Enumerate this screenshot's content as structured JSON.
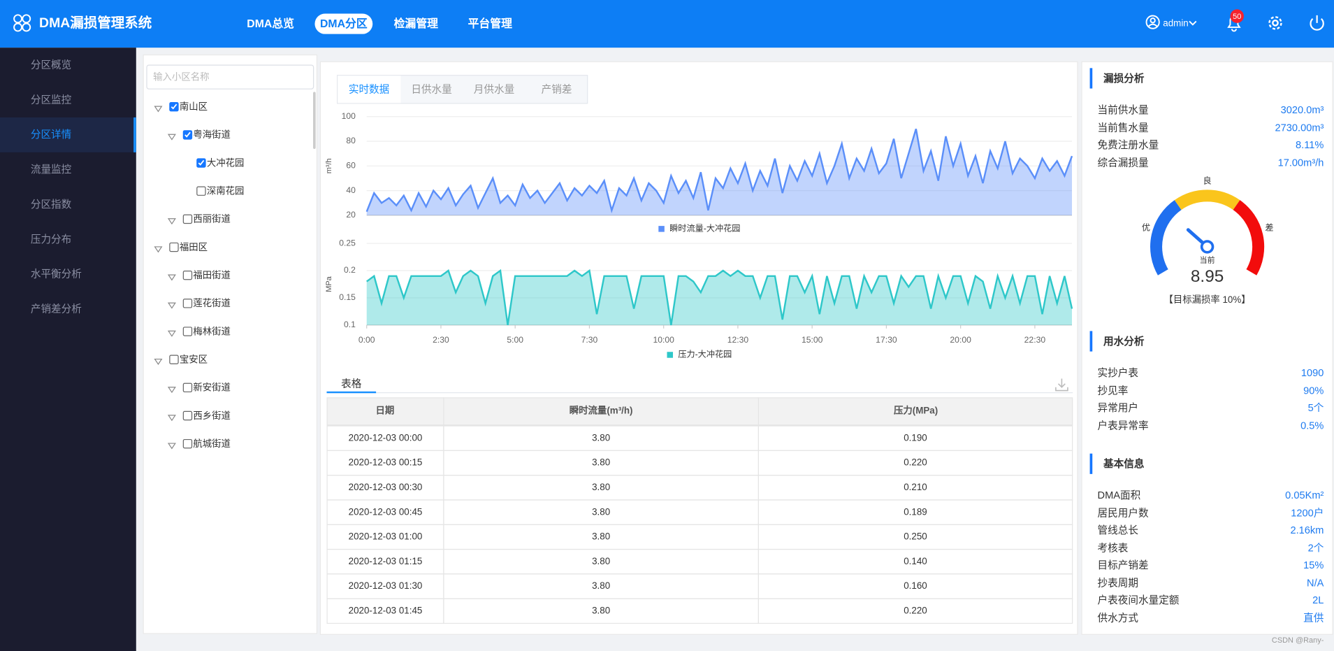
{
  "header": {
    "title": "DMA漏损管理系统",
    "nav": [
      "DMA总览",
      "DMA分区",
      "检漏管理",
      "平台管理"
    ],
    "active_nav": 1,
    "user": "admin",
    "notifications": 50
  },
  "sidebar": {
    "items": [
      "分区概览",
      "分区监控",
      "分区详情",
      "流量监控",
      "分区指数",
      "压力分布",
      "水平衡分析",
      "产销差分析"
    ],
    "active": 2
  },
  "tree": {
    "placeholder": "输入小区名称",
    "nodes": [
      {
        "label": "南山区",
        "level": 0,
        "checked": true
      },
      {
        "label": "粤海街道",
        "level": 1,
        "checked": true
      },
      {
        "label": "大冲花园",
        "level": 2,
        "checked": true
      },
      {
        "label": "深南花园",
        "level": 2,
        "checked": false
      },
      {
        "label": "西丽街道",
        "level": 1,
        "checked": false
      },
      {
        "label": "福田区",
        "level": 0,
        "checked": false
      },
      {
        "label": "福田街道",
        "level": 1,
        "checked": false
      },
      {
        "label": "莲花街道",
        "level": 1,
        "checked": false
      },
      {
        "label": "梅林街道",
        "level": 1,
        "checked": false
      },
      {
        "label": "宝安区",
        "level": 0,
        "checked": false
      },
      {
        "label": "新安街道",
        "level": 1,
        "checked": false
      },
      {
        "label": "西乡街道",
        "level": 1,
        "checked": false
      },
      {
        "label": "航城街道",
        "level": 1,
        "checked": false
      }
    ]
  },
  "tabs": {
    "items": [
      "实时数据",
      "日供水量",
      "月供水量",
      "产销差"
    ],
    "active": 0
  },
  "chart_data": [
    {
      "type": "area",
      "y_label": "m³/h",
      "ylim": [
        20,
        100
      ],
      "yticks": [
        20,
        40,
        60,
        80,
        100
      ],
      "grid": true,
      "series": [
        {
          "name": "瞬时流量-大冲花园",
          "color": "#5b8ff9",
          "values": [
            23,
            38,
            30,
            34,
            28,
            36,
            24,
            38,
            27,
            40,
            33,
            42,
            28,
            37,
            44,
            26,
            38,
            50,
            30,
            36,
            28,
            45,
            34,
            40,
            30,
            38,
            46,
            32,
            42,
            36,
            44,
            38,
            48,
            24,
            42,
            36,
            50,
            32,
            46,
            40,
            30,
            52,
            38,
            48,
            34,
            55,
            24,
            50,
            42,
            58,
            46,
            62,
            40,
            56,
            44,
            66,
            38,
            60,
            48,
            64,
            52,
            70,
            46,
            60,
            78,
            50,
            66,
            56,
            74,
            54,
            62,
            82,
            50,
            70,
            90,
            56,
            72,
            48,
            84,
            60,
            78,
            52,
            68,
            46,
            72,
            58,
            80,
            54,
            66,
            60,
            50,
            66,
            56,
            64,
            52,
            68
          ]
        }
      ]
    },
    {
      "type": "area",
      "y_label": "MPa",
      "ylim": [
        0.1,
        0.25
      ],
      "yticks": [
        0.1,
        0.15,
        0.2,
        0.25
      ],
      "grid": true,
      "categories": [
        "0:00",
        null,
        null,
        null,
        null,
        null,
        null,
        null,
        null,
        null,
        "2:30",
        null,
        null,
        null,
        null,
        null,
        null,
        null,
        null,
        null,
        "5:00",
        null,
        null,
        null,
        null,
        null,
        null,
        null,
        null,
        null,
        "7:30",
        null,
        null,
        null,
        null,
        null,
        null,
        null,
        null,
        null,
        "10:00",
        null,
        null,
        null,
        null,
        null,
        null,
        null,
        null,
        null,
        "12:30",
        null,
        null,
        null,
        null,
        null,
        null,
        null,
        null,
        null,
        "15:00",
        null,
        null,
        null,
        null,
        null,
        null,
        null,
        null,
        null,
        "17:30",
        null,
        null,
        null,
        null,
        null,
        null,
        null,
        null,
        null,
        "20:00",
        null,
        null,
        null,
        null,
        null,
        null,
        null,
        null,
        null,
        "22:30",
        null,
        null,
        null,
        null,
        null
      ],
      "series": [
        {
          "name": "压力-大冲花园",
          "color": "#2ec7c9",
          "values": [
            0.18,
            0.19,
            0.14,
            0.19,
            0.19,
            0.15,
            0.19,
            0.19,
            0.19,
            0.19,
            0.19,
            0.2,
            0.16,
            0.19,
            0.2,
            0.19,
            0.14,
            0.19,
            0.2,
            0.1,
            0.19,
            0.19,
            0.19,
            0.19,
            0.19,
            0.19,
            0.19,
            0.19,
            0.2,
            0.19,
            0.2,
            0.12,
            0.19,
            0.19,
            0.19,
            0.19,
            0.13,
            0.19,
            0.19,
            0.19,
            0.19,
            0.1,
            0.19,
            0.19,
            0.18,
            0.16,
            0.19,
            0.19,
            0.2,
            0.19,
            0.2,
            0.19,
            0.19,
            0.15,
            0.19,
            0.19,
            0.11,
            0.19,
            0.19,
            0.16,
            0.19,
            0.12,
            0.19,
            0.14,
            0.19,
            0.19,
            0.13,
            0.19,
            0.16,
            0.19,
            0.19,
            0.14,
            0.19,
            0.17,
            0.19,
            0.19,
            0.13,
            0.19,
            0.15,
            0.19,
            0.19,
            0.14,
            0.19,
            0.18,
            0.13,
            0.19,
            0.15,
            0.19,
            0.14,
            0.19,
            0.19,
            0.12,
            0.19,
            0.14,
            0.19,
            0.13
          ]
        }
      ]
    },
    {
      "type": "gauge",
      "value": 8.95,
      "lim": [
        0,
        30
      ],
      "labels": [
        "优",
        "良",
        "差"
      ],
      "colors": [
        "#1f6fef",
        "#fac51c",
        "#f20c0c"
      ],
      "current_label": "当前",
      "target": "【目标漏损率 10%】"
    }
  ],
  "table": {
    "tab": "表格",
    "columns": [
      "日期",
      "瞬时流量(m³/h)",
      "压力(MPa)"
    ],
    "rows": [
      [
        "2020-12-03 00:00",
        "3.80",
        "0.190"
      ],
      [
        "2020-12-03 00:15",
        "3.80",
        "0.220"
      ],
      [
        "2020-12-03 00:30",
        "3.80",
        "0.210"
      ],
      [
        "2020-12-03 00:45",
        "3.80",
        "0.189"
      ],
      [
        "2020-12-03 01:00",
        "3.80",
        "0.250"
      ],
      [
        "2020-12-03 01:15",
        "3.80",
        "0.140"
      ],
      [
        "2020-12-03 01:30",
        "3.80",
        "0.160"
      ],
      [
        "2020-12-03 01:45",
        "3.80",
        "0.220"
      ]
    ]
  },
  "panels": [
    {
      "title": "漏损分析",
      "rows": [
        [
          "当前供水量",
          "3020.0m³"
        ],
        [
          "当前售水量",
          "2730.00m³"
        ],
        [
          "免费注册水量",
          "8.11%"
        ],
        [
          "综合漏损量",
          "17.00m³/h"
        ]
      ]
    },
    {
      "title": "用水分析",
      "rows": [
        [
          "实抄户表",
          "1090"
        ],
        [
          "抄见率",
          "90%"
        ],
        [
          "异常用户",
          "5个"
        ],
        [
          "户表异常率",
          "0.5%"
        ]
      ]
    },
    {
      "title": "基本信息",
      "rows": [
        [
          "DMA面积",
          "0.05Km²"
        ],
        [
          "居民用户数",
          "1200户"
        ],
        [
          "管线总长",
          "2.16km"
        ],
        [
          "考核表",
          "2个"
        ],
        [
          "目标产销差",
          "15%"
        ],
        [
          "抄表周期",
          "N/A"
        ],
        [
          "户表夜间水量定额",
          "2L"
        ],
        [
          "供水方式",
          "直供"
        ]
      ]
    }
  ],
  "watermark": "CSDN @Rany-"
}
